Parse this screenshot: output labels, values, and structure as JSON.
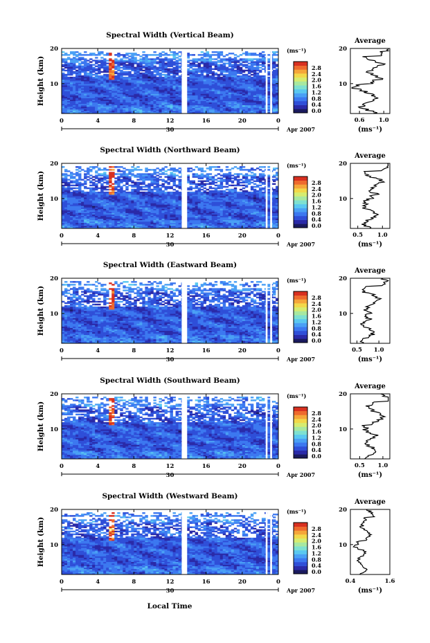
{
  "figure": {
    "xlabel": "Local Time",
    "date_label": "30",
    "month_label": "Apr 2007"
  },
  "chart_data": [
    {
      "type": "heatmap",
      "title": "Spectral Width (Vertical Beam)",
      "ylabel": "Height (km)",
      "xlabel": "Local Time",
      "x_ticks": [
        "0",
        "4",
        "8",
        "12",
        "16",
        "20",
        "0"
      ],
      "y_ticks": [
        "10",
        "20"
      ],
      "xlim": [
        0,
        24
      ],
      "ylim": [
        1.5,
        20
      ],
      "color_scale": {
        "unit": "(ms⁻¹)",
        "ticks": [
          "0.0",
          "0.4",
          "0.8",
          "1.2",
          "1.6",
          "2.0",
          "2.4",
          "2.8"
        ],
        "range": [
          0,
          2.8
        ]
      },
      "average_profile": {
        "title": "Average",
        "xlabel": "(ms⁻¹)",
        "x_ticks": [
          "0.6",
          "1.0"
        ],
        "xlim": [
          0.45,
          1.1
        ],
        "y_ticks": [
          "10",
          "20"
        ]
      },
      "data_gaps_local_time": [
        [
          13.3,
          13.9
        ],
        [
          22.6,
          22.8
        ],
        [
          23.1,
          23.3
        ]
      ]
    },
    {
      "type": "heatmap",
      "title": "Spectral Width (Northward Beam)",
      "ylabel": "Height (km)",
      "xlabel": "Local Time",
      "x_ticks": [
        "0",
        "4",
        "8",
        "12",
        "16",
        "20",
        "0"
      ],
      "y_ticks": [
        "10",
        "20"
      ],
      "xlim": [
        0,
        24
      ],
      "ylim": [
        1.5,
        20
      ],
      "color_scale": {
        "unit": "(ms⁻¹)",
        "ticks": [
          "0.0",
          "0.4",
          "0.8",
          "1.2",
          "1.6",
          "2.0",
          "2.4",
          "2.8"
        ],
        "range": [
          0,
          2.8
        ]
      },
      "average_profile": {
        "title": "Average",
        "xlabel": "(ms⁻¹)",
        "x_ticks": [
          "0.5",
          "1.0"
        ],
        "xlim": [
          0.35,
          1.15
        ],
        "y_ticks": [
          "10",
          "20"
        ]
      },
      "data_gaps_local_time": [
        [
          13.3,
          13.9
        ],
        [
          22.6,
          22.8
        ],
        [
          23.1,
          23.3
        ]
      ]
    },
    {
      "type": "heatmap",
      "title": "Spectral Width (Eastward Beam)",
      "ylabel": "Height (km)",
      "xlabel": "Local Time",
      "x_ticks": [
        "0",
        "4",
        "8",
        "12",
        "16",
        "20",
        "0"
      ],
      "y_ticks": [
        "10",
        "20"
      ],
      "xlim": [
        0,
        24
      ],
      "ylim": [
        1.5,
        20
      ],
      "color_scale": {
        "unit": "(ms⁻¹)",
        "ticks": [
          "0.0",
          "0.4",
          "0.8",
          "1.2",
          "1.6",
          "2.0",
          "2.4",
          "2.8"
        ],
        "range": [
          0,
          2.8
        ]
      },
      "average_profile": {
        "title": "Average",
        "xlabel": "(ms⁻¹)",
        "x_ticks": [
          "0.5",
          "1.0"
        ],
        "xlim": [
          0.35,
          1.25
        ],
        "y_ticks": [
          "10",
          "20"
        ]
      },
      "data_gaps_local_time": [
        [
          13.3,
          13.9
        ],
        [
          22.6,
          22.8
        ],
        [
          23.1,
          23.3
        ]
      ]
    },
    {
      "type": "heatmap",
      "title": "Spectral Width (Southward Beam)",
      "ylabel": "Height (km)",
      "xlabel": "Local Time",
      "x_ticks": [
        "0",
        "4",
        "8",
        "12",
        "16",
        "20",
        "0"
      ],
      "y_ticks": [
        "10",
        "20"
      ],
      "xlim": [
        0,
        24
      ],
      "ylim": [
        1.5,
        20
      ],
      "color_scale": {
        "unit": "(ms⁻¹)",
        "ticks": [
          "0.0",
          "0.4",
          "0.8",
          "1.2",
          "1.6",
          "2.0",
          "2.4",
          "2.8"
        ],
        "range": [
          0,
          2.8
        ]
      },
      "average_profile": {
        "title": "Average",
        "xlabel": "(ms⁻¹)",
        "x_ticks": [
          "0.5",
          "1.0"
        ],
        "xlim": [
          0.3,
          1.15
        ],
        "y_ticks": [
          "10",
          "20"
        ]
      },
      "data_gaps_local_time": [
        [
          13.3,
          13.9
        ],
        [
          22.6,
          22.8
        ],
        [
          23.1,
          23.3
        ]
      ]
    },
    {
      "type": "heatmap",
      "title": "Spectral Width (Westward Beam)",
      "ylabel": "Height (km)",
      "xlabel": "Local Time",
      "x_ticks": [
        "0",
        "4",
        "8",
        "12",
        "16",
        "20",
        "0"
      ],
      "y_ticks": [
        "10",
        "20"
      ],
      "xlim": [
        0,
        24
      ],
      "ylim": [
        1.5,
        20
      ],
      "color_scale": {
        "unit": "(ms⁻¹)",
        "ticks": [
          "0.0",
          "0.4",
          "0.8",
          "1.2",
          "1.6",
          "2.0",
          "2.4",
          "2.8"
        ],
        "range": [
          0,
          2.8
        ]
      },
      "average_profile": {
        "title": "Average",
        "xlabel": "(ms⁻¹)",
        "x_ticks": [
          "0.4",
          "1.6"
        ],
        "xlim": [
          0.4,
          1.6
        ],
        "y_ticks": [
          "10",
          "20"
        ]
      },
      "data_gaps_local_time": [
        [
          13.3,
          13.9
        ],
        [
          22.6,
          22.8
        ],
        [
          23.1,
          23.3
        ]
      ]
    }
  ],
  "colors": {
    "colorbar": [
      "#1a1a5e",
      "#2a2aa8",
      "#2f4fd8",
      "#3c78f0",
      "#4aa0f5",
      "#5ac8f0",
      "#7ee0d0",
      "#a8e8a0",
      "#d6ec70",
      "#f2d84a",
      "#f5a63a",
      "#ee6a2e",
      "#d83020"
    ]
  }
}
